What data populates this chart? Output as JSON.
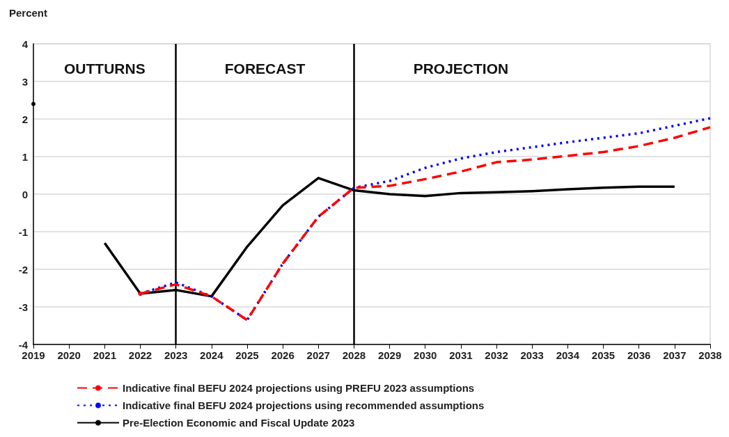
{
  "chart_data": {
    "type": "line",
    "ylabel": "Percent",
    "categories": [
      "2019",
      "2020",
      "2021",
      "2022",
      "2023",
      "2024",
      "2025",
      "2026",
      "2027",
      "2028",
      "2029",
      "2030",
      "2031",
      "2032",
      "2033",
      "2034",
      "2035",
      "2036",
      "2037",
      "2038"
    ],
    "series": [
      {
        "name": "Indicative final BEFU 2024 projections using PREFU 2023 assumptions",
        "color": "#ff0000",
        "line_style": "dashed",
        "values": [
          null,
          null,
          null,
          -2.65,
          -2.4,
          -2.72,
          -3.35,
          -1.85,
          -0.6,
          0.17,
          0.22,
          0.4,
          0.6,
          0.85,
          0.92,
          1.02,
          1.12,
          1.28,
          1.5,
          1.78
        ]
      },
      {
        "name": "Indicative final BEFU 2024 projections using recommended assumptions",
        "color": "#0000ff",
        "line_style": "dotted",
        "values": [
          null,
          null,
          null,
          -2.65,
          -2.35,
          -2.72,
          -3.35,
          -1.85,
          -0.6,
          0.17,
          0.35,
          0.7,
          0.95,
          1.12,
          1.25,
          1.38,
          1.5,
          1.62,
          1.82,
          2.02
        ]
      },
      {
        "name": "Pre-Election Economic and Fiscal Update 2023",
        "color": "#000000",
        "line_style": "solid",
        "values": [
          2.4,
          null,
          -1.3,
          -2.65,
          -2.55,
          -2.72,
          -1.4,
          -0.3,
          0.43,
          0.1,
          0.0,
          -0.05,
          0.03,
          0.05,
          0.08,
          0.13,
          0.17,
          0.2,
          0.2,
          null
        ]
      }
    ],
    "ylim": [
      -4,
      4
    ],
    "yticks": [
      -4,
      -3,
      -2,
      -1,
      0,
      1,
      2,
      3,
      4
    ],
    "grid": "y",
    "legend": "bottom",
    "marker": "none",
    "ref_lines": [
      {
        "axis": "x",
        "value": "2023",
        "color": "#000000"
      },
      {
        "axis": "x",
        "value": "2028",
        "color": "#000000"
      }
    ],
    "annotations": [
      "OUTTURNS",
      "FORECAST",
      "PROJECTION"
    ]
  }
}
